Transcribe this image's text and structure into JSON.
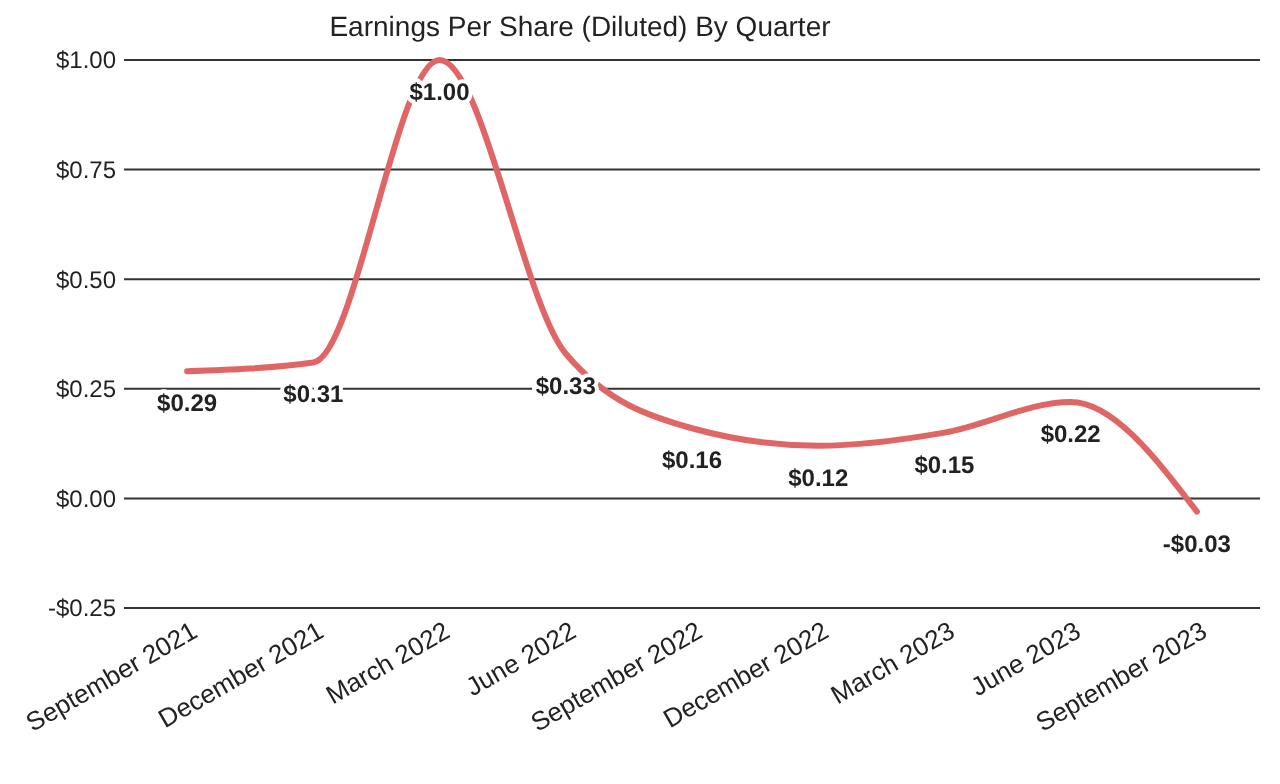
{
  "chart_data": {
    "type": "line",
    "title": "Earnings Per Share (Diluted) By Quarter",
    "categories": [
      "September 2021",
      "December 2021",
      "March 2022",
      "June 2022",
      "September 2022",
      "December 2022",
      "March 2023",
      "June 2023",
      "September 2023"
    ],
    "series": [
      {
        "color": "#e06666",
        "values": [
          0.29,
          0.31,
          1.0,
          0.33,
          0.16,
          0.12,
          0.15,
          0.22,
          -0.03
        ],
        "value_labels": [
          "$0.29",
          "$0.31",
          "$1.00",
          "$0.33",
          "$0.16",
          "$0.12",
          "$0.15",
          "$0.22",
          "-$0.03"
        ]
      }
    ],
    "ylim": [
      -0.25,
      1.0
    ],
    "yticks": [
      {
        "value": -0.25,
        "label": "-$0.25"
      },
      {
        "value": 0,
        "label": "$0.00"
      },
      {
        "value": 0.25,
        "label": "$0.25"
      },
      {
        "value": 0.5,
        "label": "$0.50"
      },
      {
        "value": 0.75,
        "label": "$0.75"
      },
      {
        "value": 1.0,
        "label": "$1.00"
      }
    ],
    "grid": "y",
    "marker": "none",
    "line_style": "solid"
  }
}
